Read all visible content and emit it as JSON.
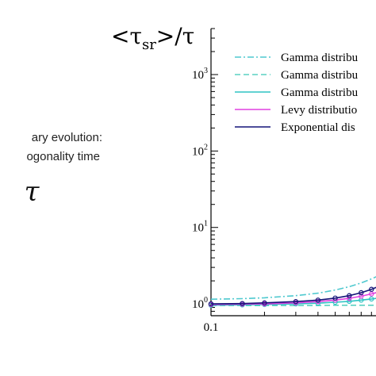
{
  "side_panel": {
    "line1": "ary evolution:",
    "line2": "ogonality time",
    "symbol": "τ"
  },
  "chart_data": {
    "type": "line",
    "title": "<τsr>/τ",
    "title_parts": {
      "open": "<τ",
      "sub": "sr",
      "close": ">/τ"
    },
    "xlabel": "",
    "ylabel": "",
    "x_scale": "log",
    "y_scale": "log",
    "xlim": [
      0.1,
      1.0
    ],
    "ylim": [
      0.7,
      4000
    ],
    "x_ticks": [
      {
        "value": 0.1,
        "label": "0.1"
      }
    ],
    "y_ticks": [
      {
        "value": 1,
        "label": "10",
        "exp": "0"
      },
      {
        "value": 10,
        "label": "10",
        "exp": "1"
      },
      {
        "value": 100,
        "label": "10",
        "exp": "2"
      },
      {
        "value": 1000,
        "label": "10",
        "exp": "3"
      }
    ],
    "grid": false,
    "legend_position": "top-right",
    "series": [
      {
        "name": "Gamma distribu",
        "color": "#4fc9cf",
        "dash": "dashdot",
        "markers": false,
        "x": [
          0.1,
          0.15,
          0.2,
          0.3,
          0.4,
          0.5,
          0.6,
          0.7,
          0.8,
          0.9,
          1.0
        ],
        "y": [
          1.15,
          1.17,
          1.2,
          1.28,
          1.38,
          1.52,
          1.68,
          1.88,
          2.12,
          2.4,
          2.75
        ]
      },
      {
        "name": "Gamma distribu",
        "color": "#5ad1c2",
        "dash": "dashed",
        "markers": false,
        "x": [
          0.1,
          0.15,
          0.2,
          0.3,
          0.4,
          0.5,
          0.6,
          0.7,
          0.8,
          0.9,
          1.0
        ],
        "y": [
          0.95,
          0.95,
          0.95,
          0.95,
          0.95,
          0.96,
          0.96,
          0.96,
          0.96,
          0.96,
          0.96
        ]
      },
      {
        "name": "Gamma distribu",
        "color": "#2ec4c4",
        "dash": "solid",
        "markers": true,
        "x": [
          0.1,
          0.15,
          0.2,
          0.3,
          0.4,
          0.5,
          0.6,
          0.7,
          0.8,
          0.9,
          1.0
        ],
        "y": [
          0.96,
          0.97,
          0.98,
          1.0,
          1.02,
          1.05,
          1.08,
          1.12,
          1.16,
          1.2,
          1.25
        ]
      },
      {
        "name": "Levy distributio",
        "color": "#e040e0",
        "dash": "solid",
        "markers": true,
        "x": [
          0.1,
          0.15,
          0.2,
          0.3,
          0.4,
          0.5,
          0.6,
          0.7,
          0.8,
          0.9,
          1.0
        ],
        "y": [
          0.98,
          0.99,
          1.0,
          1.03,
          1.07,
          1.12,
          1.18,
          1.26,
          1.35,
          1.45,
          1.57
        ]
      },
      {
        "name": "Exponential dis",
        "color": "#141478",
        "dash": "solid",
        "markers": true,
        "x": [
          0.1,
          0.15,
          0.2,
          0.3,
          0.4,
          0.5,
          0.6,
          0.7,
          0.8,
          0.9,
          1.0
        ],
        "y": [
          1.0,
          1.01,
          1.03,
          1.07,
          1.12,
          1.19,
          1.28,
          1.4,
          1.55,
          1.73,
          1.95
        ]
      }
    ]
  }
}
